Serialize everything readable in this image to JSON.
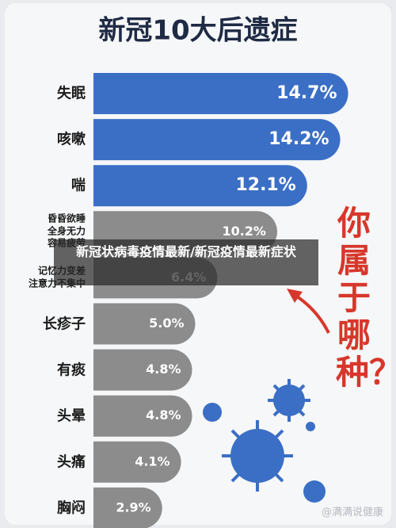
{
  "chart_data": {
    "type": "bar",
    "orientation": "horizontal",
    "title": "新冠10大后遗症",
    "categories": [
      "失眠",
      "咳嗽",
      "喘",
      "昏昏欲睡\n全身无力\n容易疲劳",
      "记忆力变差\n注意力不集中",
      "长疹子",
      "有痰",
      "头晕",
      "头痛",
      "胸闷"
    ],
    "values": [
      14.7,
      14.2,
      12.1,
      10.2,
      6.4,
      5.0,
      4.8,
      4.8,
      4.1,
      2.9
    ],
    "value_labels": [
      "14.7%",
      "14.2%",
      "12.1%",
      "10.2%",
      "6.4%",
      "5.0%",
      "4.8%",
      "4.8%",
      "4.1%",
      "2.9%"
    ],
    "colors": [
      "#3b6fc6",
      "#3b6fc6",
      "#3b6fc6",
      "#8c8c8c",
      "#8c8c8c",
      "#8c8c8c",
      "#8c8c8c",
      "#8c8c8c",
      "#8c8c8c",
      "#8c8c8c"
    ],
    "annotation": "你属于哪种？",
    "overlay_caption": "新冠状病毒疫情最新/新冠疫情最新症状",
    "watermark": "@满满说健康"
  }
}
